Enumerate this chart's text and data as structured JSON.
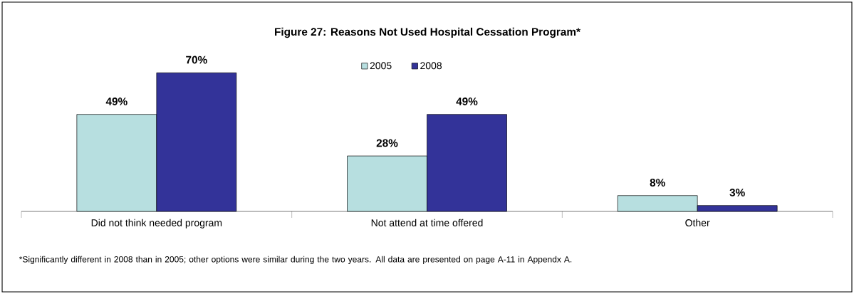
{
  "chart_data": {
    "type": "bar",
    "title": "Figure 27: Reasons Not Used Hospital Cessation Program*",
    "categories": [
      "Did not think needed program",
      "Not attend at time offered",
      "Other"
    ],
    "series": [
      {
        "name": "2005",
        "color": "#b7dfe0",
        "values": [
          49,
          28,
          8
        ],
        "value_labels": [
          "49%",
          "28%",
          "8%"
        ]
      },
      {
        "name": "2008",
        "color": "#333399",
        "values": [
          70,
          49,
          3
        ],
        "value_labels": [
          "70%",
          "49%",
          "3%"
        ]
      }
    ],
    "legend": "top",
    "annotations": [
      "*Significantly different in 2008 than in 2005; other options were similar during the two years.  All data are presented on page A-11 in Appendx A."
    ]
  }
}
